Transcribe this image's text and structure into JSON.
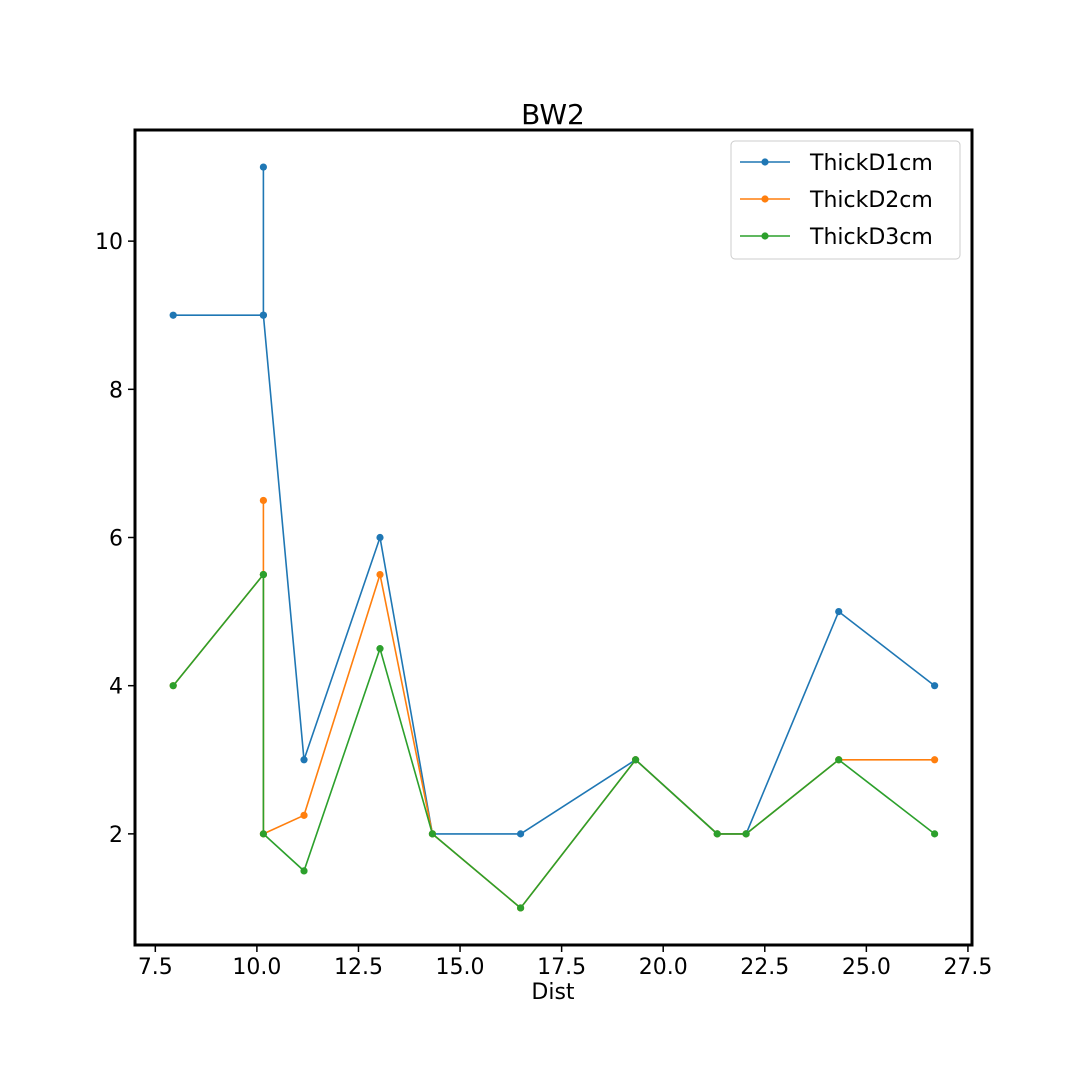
{
  "chart_data": {
    "type": "line",
    "title": "BW2",
    "xlabel": "Dist",
    "ylabel": "",
    "xlim": [
      7.0,
      27.6
    ],
    "ylim": [
      0.5,
      11.5
    ],
    "xticks": [
      7.5,
      10.0,
      12.5,
      15.0,
      17.5,
      20.0,
      22.5,
      25.0,
      27.5
    ],
    "xtick_labels": [
      "7.5",
      "10.0",
      "12.5",
      "15.0",
      "17.5",
      "20.0",
      "22.5",
      "25.0",
      "27.5"
    ],
    "yticks": [
      2,
      4,
      6,
      8,
      10
    ],
    "ytick_labels": [
      "2",
      "4",
      "6",
      "8",
      "10"
    ],
    "grid": false,
    "legend_position": "top-right",
    "x": [
      7.94,
      10.16,
      10.16,
      10.16,
      11.16,
      13.03,
      14.32,
      16.49,
      19.32,
      21.33,
      22.04,
      24.32,
      26.68
    ],
    "series": [
      {
        "name": "ThickD1cm",
        "color": "#1f77b4",
        "values": [
          9,
          9,
          11,
          9,
          3,
          6,
          2,
          2,
          3,
          2,
          2,
          5,
          4
        ]
      },
      {
        "name": "ThickD2cm",
        "color": "#ff7f0e",
        "values": [
          4,
          5.5,
          6.5,
          2,
          2.25,
          5.5,
          2,
          1,
          3,
          2,
          2,
          3,
          3
        ]
      },
      {
        "name": "ThickD3cm",
        "color": "#2ca02c",
        "values": [
          4,
          5.5,
          5.5,
          2,
          1.5,
          4.5,
          2,
          1,
          3,
          2,
          2,
          3,
          2
        ]
      }
    ]
  }
}
